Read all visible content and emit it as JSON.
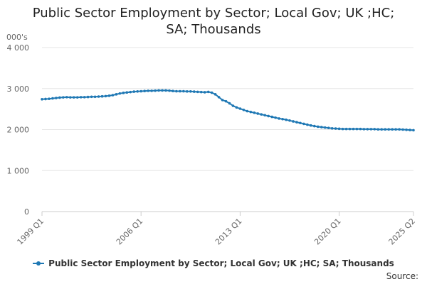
{
  "title": "Public Sector Employment by Sector; Local Gov; UK ;HC;\nSA; Thousands",
  "source_label": "Source:",
  "colors": {
    "series": "#1f78b4",
    "grid": "#e6e6e6",
    "axis": "#cccccc"
  },
  "chart_data": {
    "type": "line",
    "title": "Public Sector Employment by Sector; Local Gov; UK ;HC; SA; Thousands",
    "unit_label": "000's",
    "ylim": [
      0,
      4000
    ],
    "y_ticks": [
      0,
      1000,
      2000,
      3000,
      4000
    ],
    "y_tick_labels": [
      "0",
      "1 000",
      "2 000",
      "3 000",
      "4 000"
    ],
    "x_tick_labels": [
      "1999 Q1",
      "2006 Q1",
      "2013 Q1",
      "2020 Q1",
      "2025 Q2"
    ],
    "grid": true,
    "legend_position": "bottom",
    "series": [
      {
        "name": "Public Sector Employment by Sector; Local Gov; UK ;HC; SA; Thousands",
        "x": [
          "1999 Q1",
          "1999 Q2",
          "1999 Q3",
          "1999 Q4",
          "2000 Q1",
          "2000 Q2",
          "2000 Q3",
          "2000 Q4",
          "2001 Q1",
          "2001 Q2",
          "2001 Q3",
          "2001 Q4",
          "2002 Q1",
          "2002 Q2",
          "2002 Q3",
          "2002 Q4",
          "2003 Q1",
          "2003 Q2",
          "2003 Q3",
          "2003 Q4",
          "2004 Q1",
          "2004 Q2",
          "2004 Q3",
          "2004 Q4",
          "2005 Q1",
          "2005 Q2",
          "2005 Q3",
          "2005 Q4",
          "2006 Q1",
          "2006 Q2",
          "2006 Q3",
          "2006 Q4",
          "2007 Q1",
          "2007 Q2",
          "2007 Q3",
          "2007 Q4",
          "2008 Q1",
          "2008 Q2",
          "2008 Q3",
          "2008 Q4",
          "2009 Q1",
          "2009 Q2",
          "2009 Q3",
          "2009 Q4",
          "2010 Q1",
          "2010 Q2",
          "2010 Q3",
          "2010 Q4",
          "2011 Q1",
          "2011 Q2",
          "2011 Q3",
          "2011 Q4",
          "2012 Q1",
          "2012 Q2",
          "2012 Q3",
          "2012 Q4",
          "2013 Q1",
          "2013 Q2",
          "2013 Q3",
          "2013 Q4",
          "2014 Q1",
          "2014 Q2",
          "2014 Q3",
          "2014 Q4",
          "2015 Q1",
          "2015 Q2",
          "2015 Q3",
          "2015 Q4",
          "2016 Q1",
          "2016 Q2",
          "2016 Q3",
          "2016 Q4",
          "2017 Q1",
          "2017 Q2",
          "2017 Q3",
          "2017 Q4",
          "2018 Q1",
          "2018 Q2",
          "2018 Q3",
          "2018 Q4",
          "2019 Q1",
          "2019 Q2",
          "2019 Q3",
          "2019 Q4",
          "2020 Q1",
          "2020 Q2",
          "2020 Q3",
          "2020 Q4",
          "2021 Q1",
          "2021 Q2",
          "2021 Q3",
          "2021 Q4",
          "2022 Q1",
          "2022 Q2",
          "2022 Q3",
          "2022 Q4",
          "2023 Q1",
          "2023 Q2",
          "2023 Q3",
          "2023 Q4",
          "2024 Q1",
          "2024 Q2",
          "2024 Q3",
          "2024 Q4",
          "2025 Q1",
          "2025 Q2"
        ],
        "values": [
          2740,
          2745,
          2750,
          2760,
          2770,
          2780,
          2785,
          2790,
          2785,
          2785,
          2785,
          2790,
          2790,
          2795,
          2800,
          2800,
          2805,
          2810,
          2815,
          2825,
          2840,
          2860,
          2880,
          2895,
          2905,
          2915,
          2925,
          2930,
          2935,
          2940,
          2945,
          2945,
          2950,
          2955,
          2955,
          2955,
          2950,
          2940,
          2935,
          2935,
          2935,
          2930,
          2930,
          2925,
          2920,
          2915,
          2910,
          2920,
          2900,
          2860,
          2790,
          2720,
          2690,
          2640,
          2580,
          2540,
          2510,
          2480,
          2450,
          2430,
          2410,
          2390,
          2370,
          2350,
          2330,
          2310,
          2290,
          2270,
          2255,
          2240,
          2220,
          2200,
          2180,
          2160,
          2140,
          2120,
          2100,
          2085,
          2070,
          2060,
          2050,
          2040,
          2030,
          2025,
          2020,
          2015,
          2015,
          2015,
          2015,
          2015,
          2015,
          2010,
          2010,
          2010,
          2010,
          2005,
          2005,
          2005,
          2005,
          2005,
          2005,
          2005,
          2000,
          1995,
          1990,
          1985
        ]
      }
    ]
  }
}
